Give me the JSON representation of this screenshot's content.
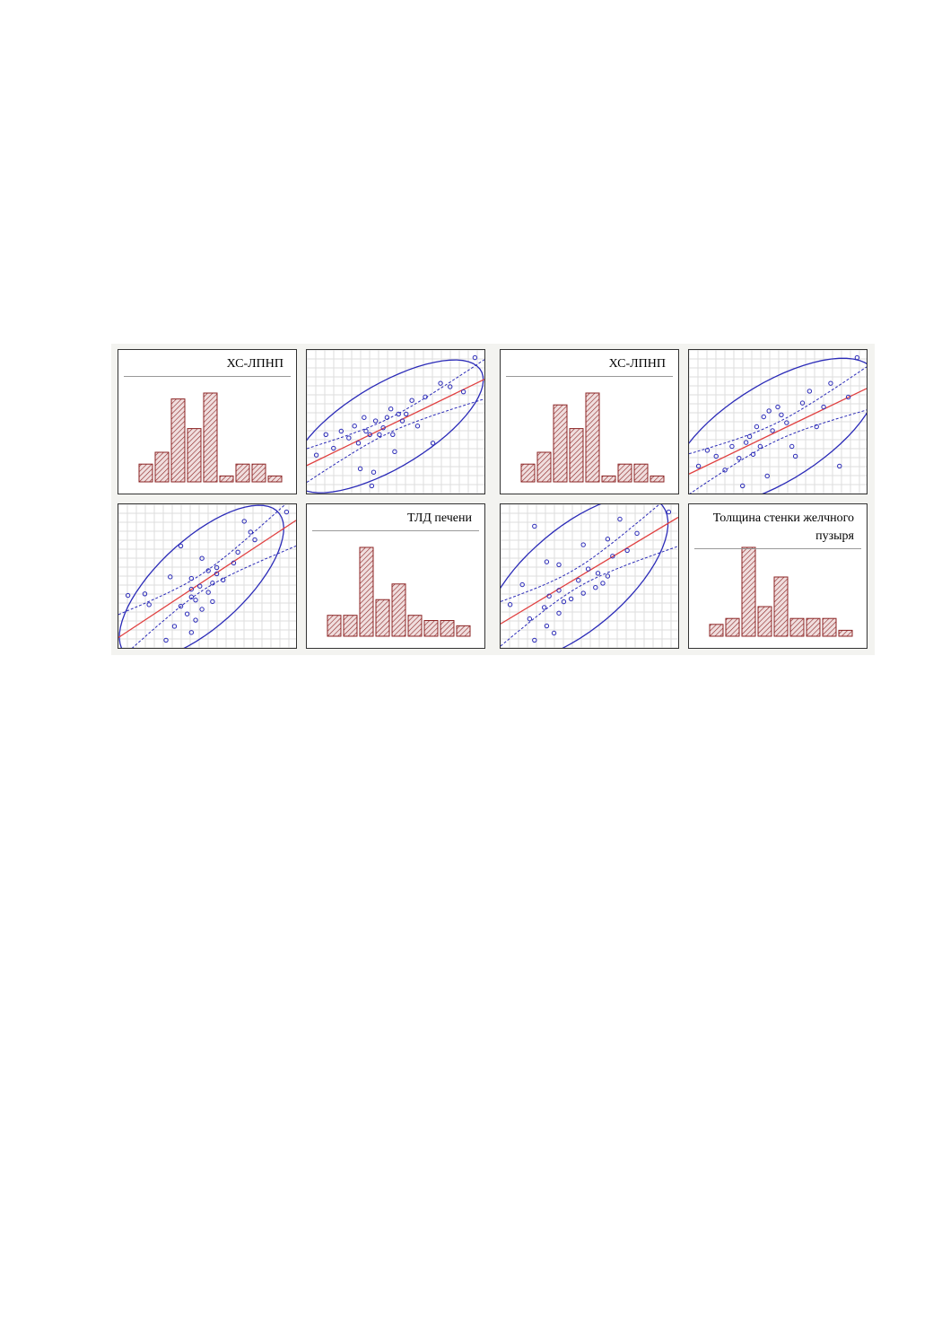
{
  "chart_data": [
    {
      "type": "bar",
      "title": "ХС-ЛПНП",
      "categories": [
        null,
        null,
        null,
        null,
        null,
        null,
        null,
        null,
        null
      ],
      "values": [
        3,
        5,
        14,
        9,
        15,
        1,
        3,
        3,
        1
      ],
      "color": "#8b2323"
    },
    {
      "type": "scatter",
      "x": [
        5,
        10,
        14,
        18,
        22,
        25,
        27,
        28,
        30,
        31,
        33,
        34,
        35,
        36,
        38,
        40,
        42,
        44,
        45,
        46,
        48,
        50,
        52,
        55,
        58,
        62,
        66,
        70,
        75,
        82,
        88
      ],
      "y": [
        38,
        50,
        42,
        52,
        48,
        55,
        45,
        30,
        60,
        52,
        50,
        20,
        28,
        58,
        50,
        54,
        60,
        65,
        50,
        40,
        62,
        58,
        62,
        70,
        55,
        72,
        45,
        80,
        78,
        75,
        95
      ],
      "color": "#2b2bb8",
      "line_color": "#e04040",
      "grid": true
    },
    {
      "type": "scatter",
      "x": [
        38,
        50,
        42,
        52,
        48,
        55,
        45,
        30,
        60,
        52,
        50,
        20,
        28,
        58,
        50,
        54,
        60,
        65,
        50,
        40,
        62,
        58,
        62,
        70,
        55,
        72,
        45,
        80,
        78,
        75,
        95
      ],
      "y": [
        5,
        10,
        14,
        18,
        22,
        25,
        27,
        28,
        30,
        31,
        33,
        34,
        35,
        36,
        38,
        40,
        42,
        44,
        45,
        46,
        48,
        50,
        52,
        55,
        58,
        62,
        66,
        70,
        75,
        82,
        88
      ],
      "color": "#2b2bb8",
      "line_color": "#e04040",
      "grid": true
    },
    {
      "type": "bar",
      "title": "ТЛД печени",
      "categories": [
        null,
        null,
        null,
        null,
        null,
        null,
        null,
        null,
        null
      ],
      "values": [
        4,
        4,
        17,
        7,
        10,
        4,
        3,
        3,
        2
      ],
      "color": "#8b2323"
    },
    {
      "type": "bar",
      "title": "ХС-ЛПНП",
      "categories": [
        null,
        null,
        null,
        null,
        null,
        null,
        null,
        null,
        null
      ],
      "values": [
        3,
        5,
        13,
        9,
        15,
        1,
        3,
        3,
        1
      ],
      "color": "#8b2323"
    },
    {
      "type": "scatter",
      "x": [
        5,
        10,
        15,
        20,
        24,
        28,
        30,
        32,
        34,
        36,
        38,
        40,
        42,
        44,
        45,
        47,
        50,
        52,
        55,
        58,
        60,
        64,
        68,
        72,
        76,
        80,
        85,
        90,
        95
      ],
      "y": [
        40,
        48,
        45,
        38,
        50,
        44,
        30,
        52,
        55,
        46,
        60,
        50,
        65,
        35,
        68,
        58,
        70,
        66,
        62,
        50,
        45,
        72,
        78,
        60,
        70,
        82,
        40,
        75,
        95
      ],
      "color": "#2b2bb8",
      "line_color": "#e04040",
      "grid": true
    },
    {
      "type": "scatter",
      "x": [
        40,
        48,
        45,
        38,
        50,
        44,
        30,
        52,
        55,
        46,
        60,
        50,
        65,
        35,
        68,
        58,
        70,
        66,
        62,
        50,
        45,
        72,
        78,
        60,
        70,
        82,
        40,
        75,
        95
      ],
      "y": [
        5,
        10,
        15,
        20,
        24,
        28,
        30,
        32,
        34,
        36,
        38,
        40,
        42,
        44,
        45,
        47,
        50,
        52,
        55,
        58,
        60,
        64,
        68,
        72,
        76,
        80,
        85,
        90,
        95
      ],
      "color": "#2b2bb8",
      "line_color": "#e04040",
      "grid": true
    },
    {
      "type": "bar",
      "title": "Толщина стенки желчного пузыря",
      "categories": [
        null,
        null,
        null,
        null,
        null,
        null,
        null,
        null,
        null
      ],
      "values": [
        2,
        3,
        15,
        5,
        10,
        3,
        3,
        3,
        1
      ],
      "color": "#8b2323"
    }
  ]
}
